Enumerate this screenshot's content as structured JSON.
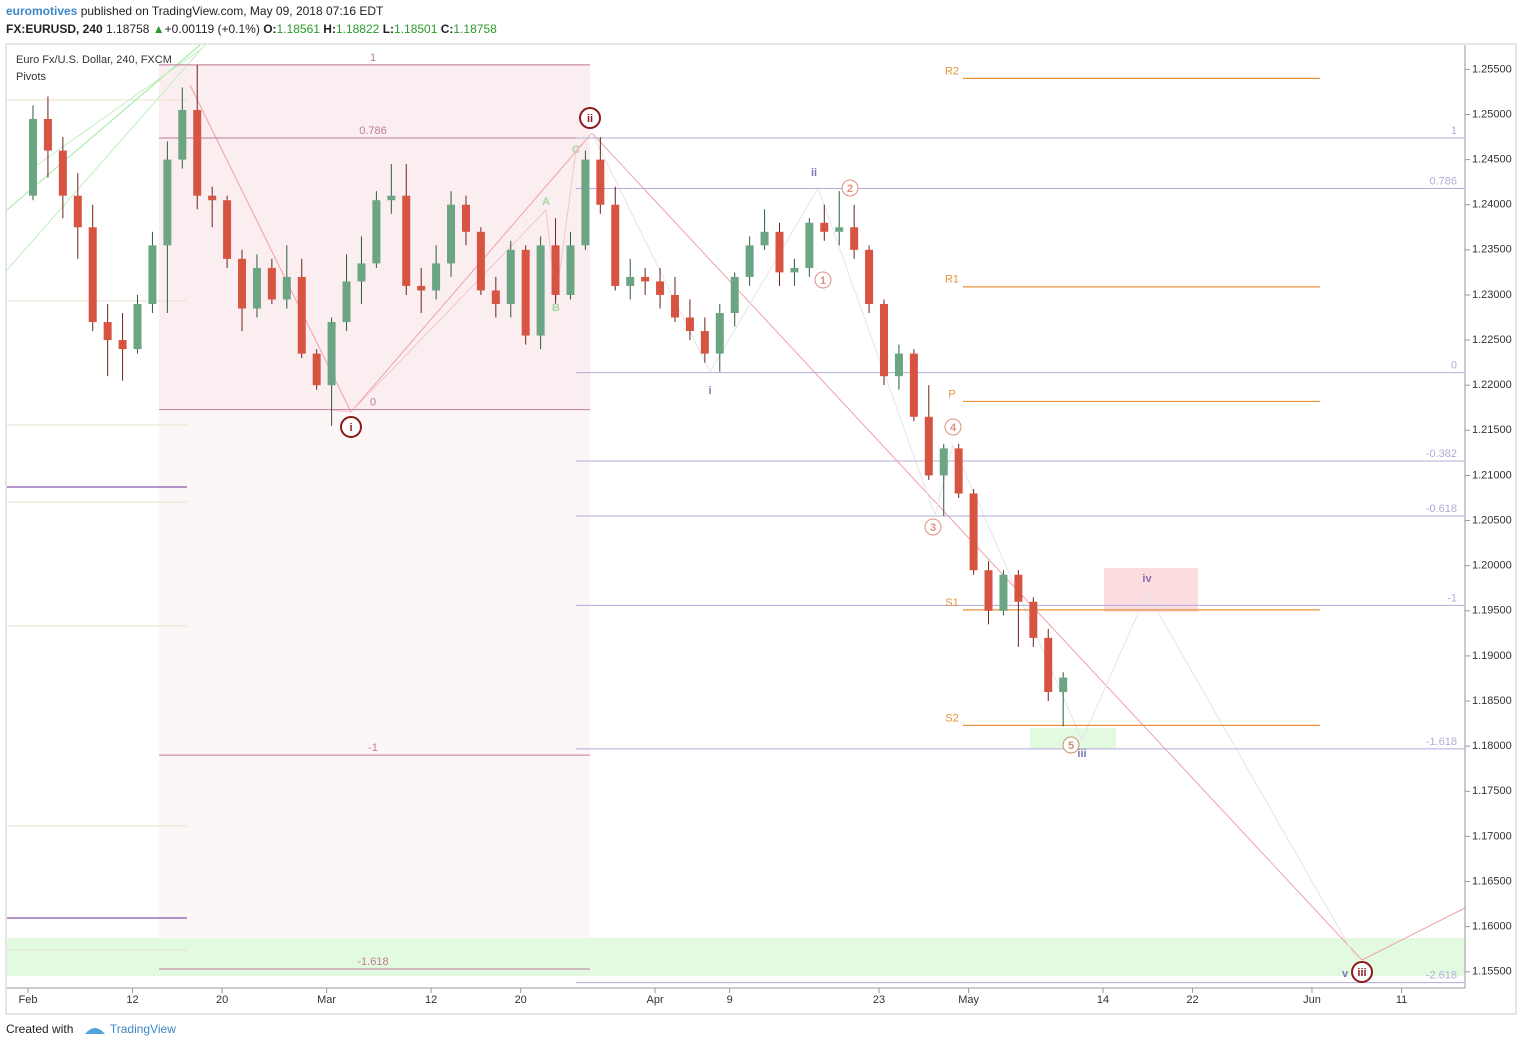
{
  "header": {
    "author": "euromotives",
    "published": "published on TradingView.com, May 09, 2018 07:16 EDT",
    "symbol": "FX:EURUSD, 240",
    "last": "1.18758",
    "arrow": "▲",
    "change": "+0.00119 (+0.1%)",
    "o_label": "O:",
    "o": "1.18561",
    "h_label": "H:",
    "h": "1.18822",
    "l_label": "L:",
    "l": "1.18501",
    "c_label": "C:",
    "c": "1.18758"
  },
  "footer": {
    "created": "Created with",
    "brand": "TradingView"
  },
  "chart_data": {
    "type": "candlestick",
    "title": "Euro Fx/U.S. Dollar, 240, FXCM",
    "subtitle": "Pivots",
    "categories": [
      "Feb",
      null,
      null,
      null,
      null,
      null,
      null,
      "12",
      null,
      null,
      null,
      null,
      null,
      "20",
      null,
      null,
      null,
      null,
      null,
      null,
      "Mar",
      null,
      null,
      null,
      null,
      null,
      null,
      "12",
      null,
      null,
      null,
      null,
      null,
      "20",
      null,
      null,
      null,
      null,
      null,
      null,
      null,
      null,
      "Apr",
      null,
      null,
      null,
      null,
      "9",
      null,
      null,
      null,
      null,
      null,
      null,
      null,
      null,
      null,
      "23",
      null,
      null,
      null,
      null,
      null,
      "May",
      null,
      null,
      null,
      null,
      null,
      null,
      null,
      null,
      "14",
      null,
      null,
      null,
      null,
      null,
      "22",
      null,
      null,
      null,
      null,
      null,
      null,
      null,
      "Jun",
      null,
      null,
      null,
      null,
      null,
      "11",
      null,
      null,
      null
    ],
    "open": [
      1.241,
      1.2495,
      1.246,
      1.241,
      1.2375,
      1.227,
      1.225,
      1.224,
      1.229,
      1.2355,
      1.245,
      1.2505,
      1.241,
      1.2405,
      1.234,
      1.2285,
      1.233,
      1.2295,
      1.232,
      1.2235,
      1.22,
      1.227,
      1.2315,
      1.2335,
      1.2405,
      1.241,
      1.231,
      1.2305,
      1.2335,
      1.24,
      1.237,
      1.2305,
      1.229,
      1.235,
      1.2255,
      1.2355,
      1.23,
      1.2355,
      1.245,
      1.24,
      1.231,
      1.232,
      1.2315,
      1.23,
      1.2275,
      1.226,
      1.2235,
      1.228,
      1.232,
      1.2355,
      1.237,
      1.2325,
      1.233,
      1.238,
      1.237,
      1.2375,
      1.235,
      1.229,
      1.221,
      1.2235,
      1.2165,
      1.21,
      1.213,
      1.208,
      1.1995,
      1.195,
      1.199,
      1.196,
      1.192,
      1.186,
      null,
      null,
      null,
      null,
      null,
      null,
      null,
      null,
      null,
      null,
      null,
      null,
      null,
      null,
      null,
      null,
      null,
      null,
      null,
      null,
      null,
      null,
      null,
      null,
      null,
      null
    ],
    "high": [
      1.251,
      1.252,
      1.2475,
      1.2435,
      1.24,
      1.229,
      1.228,
      1.23,
      1.237,
      1.247,
      1.253,
      1.2555,
      1.242,
      1.241,
      1.235,
      1.2345,
      1.234,
      1.2355,
      1.234,
      1.224,
      1.2275,
      1.2345,
      1.2365,
      1.2415,
      1.2445,
      1.2445,
      1.233,
      1.2355,
      1.2415,
      1.241,
      1.2375,
      1.232,
      1.236,
      1.2355,
      1.2365,
      1.2385,
      1.237,
      1.246,
      1.2475,
      1.242,
      1.234,
      1.233,
      1.233,
      1.232,
      1.2295,
      1.2275,
      1.229,
      1.2325,
      1.2365,
      1.2395,
      1.238,
      1.234,
      1.2385,
      1.24,
      1.2415,
      1.24,
      1.2355,
      1.2295,
      1.2245,
      1.224,
      1.22,
      1.2135,
      1.2135,
      1.2085,
      1.2005,
      1.1995,
      1.1995,
      1.1965,
      1.193,
      1.1882,
      null,
      null,
      null,
      null,
      null,
      null,
      null,
      null,
      null,
      null,
      null,
      null,
      null,
      null,
      null,
      null,
      null,
      null,
      null,
      null,
      null,
      null,
      null,
      null,
      null,
      null
    ],
    "low": [
      1.2405,
      1.243,
      1.2385,
      1.234,
      1.226,
      1.221,
      1.2205,
      1.2235,
      1.228,
      1.228,
      1.244,
      1.2395,
      1.2375,
      1.233,
      1.226,
      1.2275,
      1.229,
      1.2285,
      1.223,
      1.2195,
      1.2155,
      1.226,
      1.229,
      1.233,
      1.239,
      1.23,
      1.228,
      1.2295,
      1.232,
      1.2355,
      1.23,
      1.2275,
      1.2275,
      1.2245,
      1.224,
      1.229,
      1.2295,
      1.235,
      1.239,
      1.2305,
      1.2295,
      1.23,
      1.2285,
      1.227,
      1.225,
      1.2225,
      1.2215,
      1.2265,
      1.231,
      1.235,
      1.231,
      1.231,
      1.232,
      1.236,
      1.2355,
      1.234,
      1.228,
      1.22,
      1.2195,
      1.216,
      1.2095,
      1.2055,
      1.2075,
      1.199,
      1.1935,
      1.1945,
      1.191,
      1.191,
      1.185,
      1.1822,
      null,
      null,
      null,
      null,
      null,
      null,
      null,
      null,
      null,
      null,
      null,
      null,
      null,
      null,
      null,
      null,
      null,
      null,
      null,
      null,
      null,
      null,
      null,
      null,
      null,
      null
    ],
    "close": [
      1.2495,
      1.246,
      1.241,
      1.2375,
      1.227,
      1.225,
      1.224,
      1.229,
      1.2355,
      1.245,
      1.2505,
      1.241,
      1.2405,
      1.234,
      1.2285,
      1.233,
      1.2295,
      1.232,
      1.2235,
      1.22,
      1.227,
      1.2315,
      1.2335,
      1.2405,
      1.241,
      1.231,
      1.2305,
      1.2335,
      1.24,
      1.237,
      1.2305,
      1.229,
      1.235,
      1.2255,
      1.2355,
      1.23,
      1.2355,
      1.245,
      1.24,
      1.231,
      1.232,
      1.2315,
      1.23,
      1.2275,
      1.226,
      1.2235,
      1.228,
      1.232,
      1.2355,
      1.237,
      1.2325,
      1.233,
      1.238,
      1.237,
      1.2375,
      1.235,
      1.229,
      1.221,
      1.2235,
      1.2165,
      1.21,
      1.213,
      1.208,
      1.1995,
      1.195,
      1.199,
      1.196,
      1.192,
      1.186,
      1.1876,
      null,
      null,
      null,
      null,
      null,
      null,
      null,
      null,
      null,
      null,
      null,
      null,
      null,
      null,
      null,
      null,
      null,
      null,
      null,
      null,
      null,
      null,
      null,
      null,
      null,
      null
    ],
    "up_color": "#6ba583",
    "down_color": "#d75442",
    "ylim": [
      1.1532,
      1.2577
    ],
    "yticks": [
      {
        "value": 1.155,
        "label": "1.15500"
      },
      {
        "value": 1.16,
        "label": "1.16000"
      },
      {
        "value": 1.165,
        "label": "1.16500"
      },
      {
        "value": 1.17,
        "label": "1.17000"
      },
      {
        "value": 1.175,
        "label": "1.17500"
      },
      {
        "value": 1.18,
        "label": "1.18000"
      },
      {
        "value": 1.185,
        "label": "1.18500"
      },
      {
        "value": 1.19,
        "label": "1.19000"
      },
      {
        "value": 1.195,
        "label": "1.19500"
      },
      {
        "value": 1.2,
        "label": "1.20000"
      },
      {
        "value": 1.205,
        "label": "1.20500"
      },
      {
        "value": 1.21,
        "label": "1.21000"
      },
      {
        "value": 1.215,
        "label": "1.21500"
      },
      {
        "value": 1.22,
        "label": "1.22000"
      },
      {
        "value": 1.225,
        "label": "1.22500"
      },
      {
        "value": 1.23,
        "label": "1.23000"
      },
      {
        "value": 1.235,
        "label": "1.23500"
      },
      {
        "value": 1.24,
        "label": "1.24000"
      },
      {
        "value": 1.245,
        "label": "1.24500"
      },
      {
        "value": 1.25,
        "label": "1.25000"
      },
      {
        "value": 1.255,
        "label": "1.25500"
      }
    ],
    "fib_left": [
      {
        "label": "1",
        "value": 1.2555
      },
      {
        "label": "0.786",
        "value": 1.2474
      },
      {
        "label": "0",
        "value": 1.2173
      },
      {
        "label": "-1",
        "value": 1.179
      },
      {
        "label": "-1.618",
        "value": 1.1553
      }
    ],
    "fib_right": [
      {
        "label": "1",
        "value": 1.2474
      },
      {
        "label": "0.786",
        "value": 1.2418
      },
      {
        "label": "0",
        "value": 1.2214
      },
      {
        "label": "-0.382",
        "value": 1.2116
      },
      {
        "label": "-0.618",
        "value": 1.2055
      },
      {
        "label": "-1",
        "value": 1.1956
      },
      {
        "label": "-1.618",
        "value": 1.1797
      },
      {
        "label": "-2.618",
        "value": 1.1538
      }
    ],
    "pivots": [
      {
        "label": "R2",
        "value": 1.254
      },
      {
        "label": "R1",
        "value": 1.2309
      },
      {
        "label": "P",
        "value": 1.2182
      },
      {
        "label": "S1",
        "value": 1.1951
      },
      {
        "label": "S2",
        "value": 1.1823
      }
    ],
    "wave_labels": [
      "i",
      "ii",
      "iii",
      "i",
      "ii",
      "iii",
      "iv",
      "v",
      "1",
      "2",
      "3",
      "4",
      "5",
      "A",
      "B",
      "C"
    ]
  }
}
